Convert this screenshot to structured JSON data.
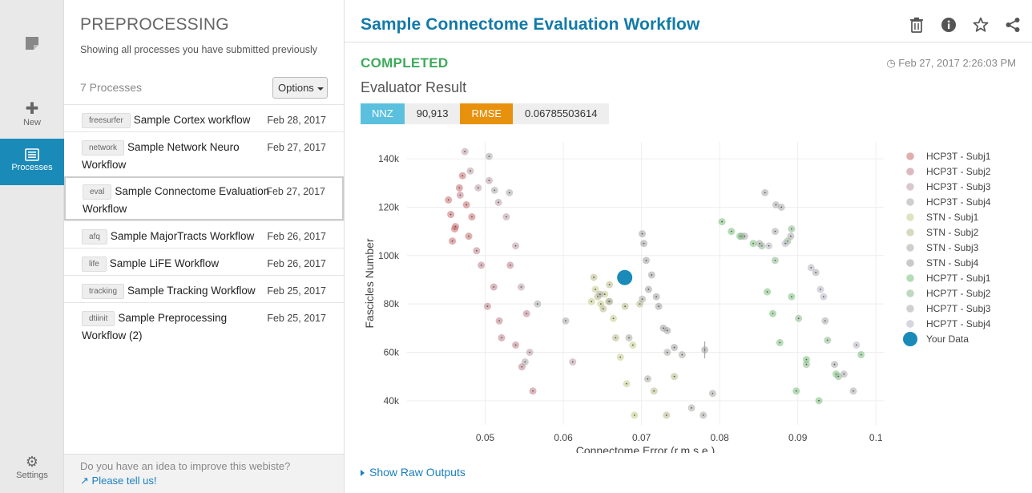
{
  "nav": {
    "items": [
      {
        "label": "New",
        "icon": "plus-icon"
      },
      {
        "label": "Processes",
        "icon": "list-icon"
      },
      {
        "label": "Settings",
        "icon": "gear-icon"
      }
    ]
  },
  "processes": {
    "heading": "PREPROCESSING",
    "subtitle": "Showing all processes you have submitted previously",
    "count_label": "7 Processes",
    "options_label": "Options",
    "rows": [
      {
        "tag": "freesurfer",
        "name": "Sample Cortex workflow",
        "date": "Feb 28, 2017"
      },
      {
        "tag": "network",
        "name": "Sample Network Neuro Workflow",
        "date": "Feb 27, 2017"
      },
      {
        "tag": "eval",
        "name": "Sample Connectome Evaluation Workflow",
        "date": "Feb 27, 2017"
      },
      {
        "tag": "afq",
        "name": "Sample MajorTracts Workflow",
        "date": "Feb 26, 2017"
      },
      {
        "tag": "life",
        "name": "Sample LiFE Workflow",
        "date": "Feb 26, 2017"
      },
      {
        "tag": "tracking",
        "name": "Sample Tracking Workflow",
        "date": "Feb 25, 2017"
      },
      {
        "tag": "dtiinit",
        "name": "Sample Preprocessing Workflow (2)",
        "date": "Feb 25, 2017"
      }
    ],
    "feedback_text": "Do you have an idea to improve this webiste?",
    "feedback_link": "Please tell us!"
  },
  "detail": {
    "title": "Sample Connectome Evaluation Workflow",
    "status": "COMPLETED",
    "timestamp": "Feb 27, 2017 2:26:03 PM",
    "result_title": "Evaluator Result",
    "nnz_label": "NNZ",
    "nnz_value": "90,913",
    "rmse_label": "RMSE",
    "rmse_value": "0.06785503614",
    "raw_outputs_label": "Show Raw Outputs"
  },
  "colors": {
    "accent": "#1a8ab8",
    "title": "#127aa8",
    "completed": "#3daa5b",
    "nnz_badge": "#5bc0de",
    "rmse_badge": "#e8910c",
    "your_data": "#1a8ab8"
  },
  "chart_data": {
    "type": "scatter",
    "xlabel": "Connectome Error (r.m.s.e.)",
    "ylabel": "Fascicles Number",
    "xlim": [
      0.04,
      0.101
    ],
    "ylim": [
      30000,
      147000
    ],
    "xticks": [
      0.05,
      0.06,
      0.07,
      0.08,
      0.09,
      0.1
    ],
    "xtick_labels": [
      "0.05",
      "0.06",
      "0.07",
      "0.08",
      "0.09",
      "0.1"
    ],
    "yticks": [
      40000,
      60000,
      80000,
      100000,
      120000,
      140000
    ],
    "ytick_labels": [
      "40k",
      "60k",
      "80k",
      "100k",
      "120k",
      "140k"
    ],
    "legend_position": "right",
    "series": [
      {
        "name": "HCP3T - Subj1",
        "color": "#c96b6b",
        "points": [
          [
            0.0453,
            123000
          ],
          [
            0.0456,
            117000
          ],
          [
            0.0461,
            111000
          ],
          [
            0.0467,
            128000
          ],
          [
            0.0471,
            133000
          ],
          [
            0.0476,
            121000
          ],
          [
            0.0483,
            116000
          ],
          [
            0.0458,
            106000
          ],
          [
            0.0462,
            112000
          ],
          [
            0.0479,
            108000
          ]
        ]
      },
      {
        "name": "HCP3T - Subj2",
        "color": "#c0808a",
        "points": [
          [
            0.0489,
            102000
          ],
          [
            0.0495,
            96000
          ],
          [
            0.0503,
            79000
          ],
          [
            0.0511,
            87000
          ],
          [
            0.0518,
            73000
          ],
          [
            0.0521,
            66000
          ],
          [
            0.0532,
            96000
          ],
          [
            0.0539,
            63000
          ],
          [
            0.0547,
            54000
          ],
          [
            0.0553,
            76000
          ],
          [
            0.0561,
            44000
          ],
          [
            0.0468,
            125000
          ]
        ]
      },
      {
        "name": "HCP3T - Subj3",
        "color": "#b99aa3",
        "points": [
          [
            0.0474,
            143000
          ],
          [
            0.0481,
            135000
          ],
          [
            0.0491,
            128000
          ],
          [
            0.0505,
            131000
          ],
          [
            0.0517,
            122000
          ],
          [
            0.0527,
            116000
          ],
          [
            0.0539,
            104000
          ],
          [
            0.0546,
            87000
          ],
          [
            0.0557,
            60000
          ],
          [
            0.0612,
            56000
          ]
        ]
      },
      {
        "name": "HCP3T - Subj4",
        "color": "#a8a8a8",
        "points": [
          [
            0.0505,
            141000
          ],
          [
            0.0512,
            127000
          ],
          [
            0.0531,
            126000
          ],
          [
            0.0551,
            56000
          ],
          [
            0.0567,
            80000
          ],
          [
            0.0603,
            73000
          ],
          [
            0.0858,
            126000
          ],
          [
            0.0872,
            121000
          ],
          [
            0.0879,
            120000
          ],
          [
            0.0947,
            55000
          ]
        ]
      },
      {
        "name": "STN - Subj1",
        "color": "#c7cc8a",
        "points": [
          [
            0.0636,
            81000
          ],
          [
            0.0641,
            86000
          ],
          [
            0.0648,
            80000
          ],
          [
            0.0653,
            84000
          ],
          [
            0.0658,
            81000
          ],
          [
            0.0664,
            74000
          ],
          [
            0.0673,
            58000
          ],
          [
            0.0681,
            47000
          ],
          [
            0.0689,
            63000
          ],
          [
            0.0691,
            34000
          ]
        ]
      },
      {
        "name": "STN - Subj2",
        "color": "#b9b98a",
        "points": [
          [
            0.0639,
            91000
          ],
          [
            0.0644,
            83000
          ],
          [
            0.0651,
            78000
          ],
          [
            0.0659,
            88000
          ],
          [
            0.0667,
            66000
          ],
          [
            0.0679,
            79000
          ],
          [
            0.0698,
            80000
          ],
          [
            0.0716,
            44000
          ],
          [
            0.0732,
            34000
          ],
          [
            0.0742,
            50000
          ]
        ]
      },
      {
        "name": "STN - Subj3",
        "color": "#a8aaa0",
        "points": [
          [
            0.0647,
            84000
          ],
          [
            0.0659,
            81000
          ],
          [
            0.0684,
            66000
          ],
          [
            0.0701,
            82000
          ],
          [
            0.0708,
            49000
          ],
          [
            0.0733,
            60000
          ],
          [
            0.0752,
            59000
          ],
          [
            0.0764,
            37000
          ],
          [
            0.0779,
            34000
          ],
          [
            0.0791,
            43000
          ]
        ]
      },
      {
        "name": "STN - Subj4",
        "color": "#9e9e9e",
        "points": [
          [
            0.0701,
            109000
          ],
          [
            0.0703,
            105000
          ],
          [
            0.0706,
            98000
          ],
          [
            0.0713,
            92000
          ],
          [
            0.0709,
            86000
          ],
          [
            0.0719,
            83000
          ],
          [
            0.0722,
            79000
          ],
          [
            0.0728,
            70000
          ],
          [
            0.0733,
            69000
          ],
          [
            0.0742,
            62000
          ],
          [
            0.0781,
            61000
          ]
        ]
      },
      {
        "name": "HCP7T - Subj1",
        "color": "#79c07a",
        "points": [
          [
            0.0803,
            114000
          ],
          [
            0.0815,
            110000
          ],
          [
            0.0826,
            108000
          ],
          [
            0.0843,
            105000
          ],
          [
            0.0861,
            85000
          ],
          [
            0.0868,
            76000
          ],
          [
            0.0877,
            64000
          ],
          [
            0.0892,
            83000
          ],
          [
            0.0898,
            44000
          ],
          [
            0.0911,
            57000
          ],
          [
            0.0927,
            40000
          ],
          [
            0.0949,
            51000
          ],
          [
            0.0981,
            59000
          ]
        ]
      },
      {
        "name": "HCP7T - Subj2",
        "color": "#8ab98c",
        "points": [
          [
            0.0828,
            108000
          ],
          [
            0.0854,
            104000
          ],
          [
            0.0871,
            98000
          ],
          [
            0.0887,
            106000
          ],
          [
            0.0892,
            111000
          ],
          [
            0.0901,
            74000
          ],
          [
            0.0911,
            55000
          ],
          [
            0.0938,
            65000
          ],
          [
            0.0952,
            50000
          ]
        ]
      },
      {
        "name": "HCP7T - Subj3",
        "color": "#a9a9a9",
        "points": [
          [
            0.0832,
            108000
          ],
          [
            0.0851,
            105000
          ],
          [
            0.0871,
            110000
          ],
          [
            0.0891,
            108000
          ],
          [
            0.0923,
            93000
          ],
          [
            0.0935,
            73000
          ],
          [
            0.0959,
            51000
          ],
          [
            0.0971,
            44000
          ]
        ]
      },
      {
        "name": "HCP7T - Subj4",
        "color": "#b7b3c2",
        "points": [
          [
            0.0863,
            104000
          ],
          [
            0.0884,
            105000
          ],
          [
            0.0917,
            95000
          ],
          [
            0.0929,
            86000
          ],
          [
            0.0933,
            83000
          ],
          [
            0.0975,
            63000
          ]
        ]
      },
      {
        "name": "Your Data",
        "color": "#1a8ab8",
        "points": [
          [
            0.06785503614,
            90913
          ]
        ]
      }
    ]
  }
}
